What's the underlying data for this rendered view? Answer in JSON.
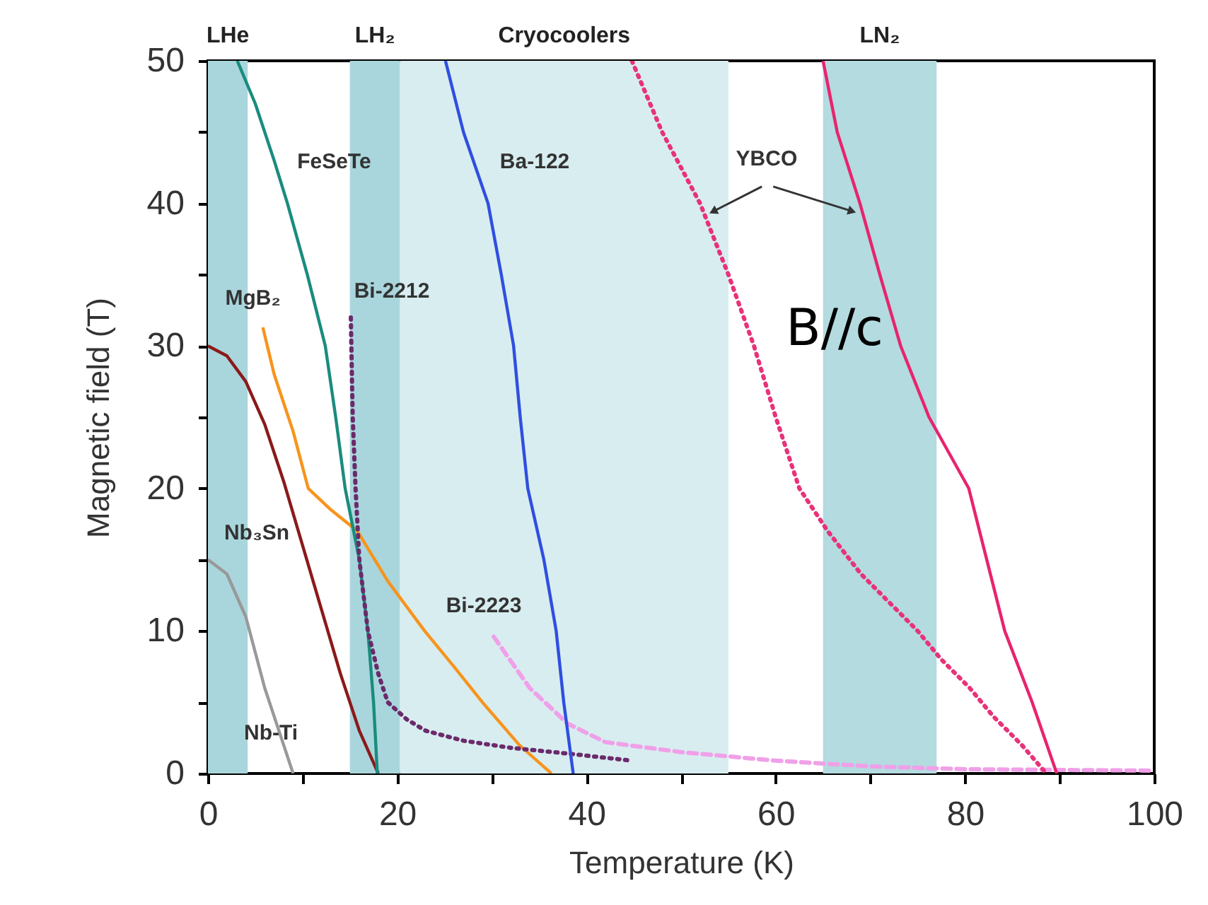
{
  "chart_data": {
    "type": "line",
    "xlabel": "Temperature (K)",
    "ylabel": "Magnetic field (T)",
    "xlim": [
      0,
      100
    ],
    "xticks": [
      0,
      {
        "value": 10,
        "label": null
      },
      20,
      {
        "value": 30,
        "label": null
      },
      40,
      {
        "value": 50,
        "label": null
      },
      60,
      {
        "value": 70,
        "label": null
      },
      80,
      {
        "value": 90,
        "label": null
      },
      100
    ],
    "ylim": [
      0,
      50
    ],
    "yticks": [
      0,
      {
        "value": 5,
        "label": null
      },
      10,
      {
        "value": 15,
        "label": null
      },
      20,
      {
        "value": 25,
        "label": null
      },
      30,
      {
        "value": 35,
        "label": null
      },
      40,
      {
        "value": 45,
        "label": null
      },
      50
    ],
    "grid": false,
    "legend": false,
    "marker": "none",
    "series": [
      {
        "name": "Nb-Ti",
        "color": "#999999",
        "line_style": "solid",
        "x": [
          0,
          2,
          4,
          6,
          8,
          9
        ],
        "values": [
          15,
          14,
          11,
          6,
          2,
          0
        ]
      },
      {
        "name": "Nb₃Sn",
        "color": "#8b1a1a",
        "line_style": "solid",
        "x": [
          0,
          2,
          4,
          6,
          8,
          10,
          12,
          14,
          16,
          18
        ],
        "values": [
          30,
          29.3,
          27.5,
          24.5,
          20.5,
          16,
          11.5,
          7,
          3,
          0
        ]
      },
      {
        "name": "MgB₂",
        "color": "#f7941d",
        "line_style": "solid",
        "x": [
          5.8,
          7,
          9,
          10.6,
          13,
          15.8,
          19,
          22.9,
          26,
          29,
          32.9,
          36.3
        ],
        "values": [
          31.3,
          28,
          24,
          20,
          18.5,
          17,
          13.5,
          10,
          7.5,
          5,
          2,
          0
        ]
      },
      {
        "name": "FeSeTe",
        "color": "#1a8c7e",
        "line_style": "solid",
        "x": [
          3.1,
          5,
          7,
          8.4,
          10.5,
          12.4,
          13.5,
          14.5,
          16,
          16.9,
          17.5,
          17.9
        ],
        "values": [
          50,
          47,
          43,
          40,
          35,
          30,
          25,
          20,
          15,
          10,
          5,
          0
        ]
      },
      {
        "name": "Bi-2212",
        "color": "#6b2a6b",
        "line_style": "dotted",
        "x": [
          15.1,
          15.3,
          15.6,
          16,
          16.9,
          18,
          19,
          21,
          23,
          27,
          32,
          38,
          44.8
        ],
        "values": [
          32,
          25,
          20,
          15,
          10,
          7,
          5,
          3.8,
          3,
          2.3,
          1.8,
          1.4,
          0.9
        ]
      },
      {
        "name": "Bi-2223",
        "color": "#f0a0e8",
        "line_style": "dashed",
        "x": [
          30.2,
          34,
          38,
          42,
          50,
          60,
          70,
          80,
          100
        ],
        "values": [
          9.6,
          6,
          3.5,
          2.2,
          1.5,
          0.9,
          0.5,
          0.3,
          0.2
        ]
      },
      {
        "name": "Ba-122",
        "color": "#2f4fe0",
        "line_style": "solid",
        "x": [
          25.1,
          27,
          29.6,
          31,
          32.3,
          33,
          33.8,
          35.5,
          36.8,
          37.6,
          38.6
        ],
        "values": [
          50,
          45,
          40,
          35,
          30,
          25,
          20,
          15,
          10,
          5,
          0
        ]
      },
      {
        "color": "#e8327a",
        "line_style": "dotted",
        "x": [
          44.8,
          48,
          52,
          55,
          57.7,
          60,
          62.5,
          65.5,
          69,
          72,
          75,
          77.5,
          80.5,
          83,
          86,
          88.6
        ],
        "values": [
          50,
          45,
          40,
          35,
          30,
          25,
          20,
          17,
          14,
          12,
          10,
          8,
          6,
          4,
          2,
          0
        ]
      },
      {
        "name": "YBCO",
        "color": "#e8246e",
        "line_style": "solid",
        "x": [
          65,
          66.5,
          68.9,
          71,
          73.2,
          76.2,
          80.4,
          82.3,
          84.2,
          87.1,
          89.7
        ],
        "values": [
          50,
          45,
          40,
          35,
          30,
          25,
          20,
          15,
          10,
          5,
          0
        ]
      }
    ],
    "bands": [
      {
        "axis": "x",
        "from": 0,
        "to": 4.2,
        "label": "LHe",
        "color": "#a9d6dc"
      },
      {
        "axis": "x",
        "from": 15,
        "to": 20.3,
        "label": "LH₂",
        "color": "#a9d6dc"
      },
      {
        "axis": "x",
        "from": 20.3,
        "to": 55,
        "label": "Cryocoolers",
        "color": "#d8edf0"
      },
      {
        "axis": "x",
        "from": 65,
        "to": 77,
        "label": "LN₂",
        "color": "#b3dbe0"
      }
    ],
    "annotations": [
      "B//c"
    ]
  }
}
